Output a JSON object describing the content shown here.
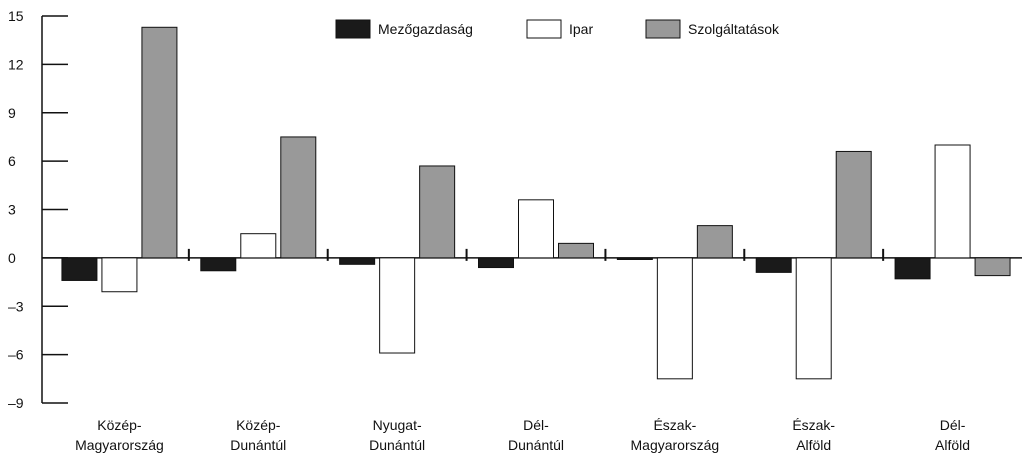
{
  "chart_data": {
    "type": "bar",
    "categories": [
      [
        "Közép-",
        "Magyarország"
      ],
      [
        "Közép-",
        "Dunántúl"
      ],
      [
        "Nyugat-",
        "Dunántúl"
      ],
      [
        "Dél-",
        "Dunántúl"
      ],
      [
        "Észak-",
        "Magyarország"
      ],
      [
        "Észak-",
        "Alföld"
      ],
      [
        "Dél-",
        "Alföld"
      ]
    ],
    "series": [
      {
        "name": "Mezőgazdaság",
        "color": "#1a1a1a",
        "values": [
          -1.4,
          -0.8,
          -0.4,
          -0.6,
          -0.1,
          -0.9,
          -1.3
        ]
      },
      {
        "name": "Ipar",
        "color": "#ffffff",
        "values": [
          -2.1,
          1.5,
          -5.9,
          3.6,
          -7.5,
          -7.5,
          7.0
        ]
      },
      {
        "name": "Szolgáltatások",
        "color": "#999999",
        "values": [
          14.3,
          7.5,
          5.7,
          0.9,
          2.0,
          6.6,
          -1.1
        ]
      }
    ],
    "ylim": [
      -9,
      15
    ],
    "yticks": [
      15,
      12,
      9,
      6,
      3,
      0,
      -3,
      -6,
      -9
    ],
    "ytick_labels": [
      "15",
      "12",
      "9",
      "6",
      "3",
      "0",
      "–3",
      "–6",
      "–9"
    ],
    "title": "",
    "xlabel": "",
    "ylabel": "",
    "grid": false,
    "legend_position": "top-center"
  }
}
